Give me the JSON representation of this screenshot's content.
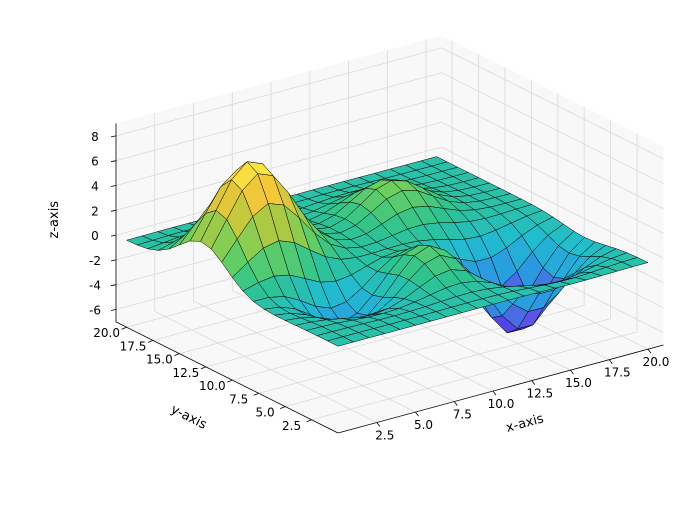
{
  "chart_data": {
    "type": "surface3d",
    "title": "",
    "xlabel": "x-axis",
    "ylabel": "y-axis",
    "zlabel": "z-axis",
    "xlim": [
      0,
      21
    ],
    "ylim": [
      0,
      21
    ],
    "zlim": [
      -7,
      9
    ],
    "x_ticks": [
      "2.5",
      "5.0",
      "7.5",
      "10.0",
      "12.5",
      "15.0",
      "17.5",
      "20.0"
    ],
    "y_ticks": [
      "2.5",
      "5.0",
      "7.5",
      "10.0",
      "12.5",
      "15.0",
      "17.5",
      "20.0"
    ],
    "z_ticks": [
      "-6",
      "-4",
      "-2",
      "0",
      "2",
      "4",
      "6",
      "8"
    ],
    "grid": true,
    "colormap": [
      "#3c1de8",
      "#5a55e8",
      "#2a9be0",
      "#22bcd0",
      "#2fc48e",
      "#6fcf5c",
      "#b8c83e",
      "#f5c73a",
      "#fdf245"
    ],
    "edge_color": "#000000",
    "surface_peaks": [
      {
        "description": "main peak",
        "x": 3.2,
        "y": 12.8,
        "z": 8.4
      },
      {
        "description": "secondary peak",
        "x": 13.0,
        "y": 14.0,
        "z": 3.0
      },
      {
        "description": "small peak",
        "x": 10.0,
        "y": 6.0,
        "z": 2.2
      },
      {
        "description": "deep trough",
        "x": 15.5,
        "y": 6.0,
        "z": -6.8
      },
      {
        "description": "trough",
        "x": 5.0,
        "y": 7.0,
        "z": -3.0
      }
    ],
    "grid_resolution": 21
  }
}
